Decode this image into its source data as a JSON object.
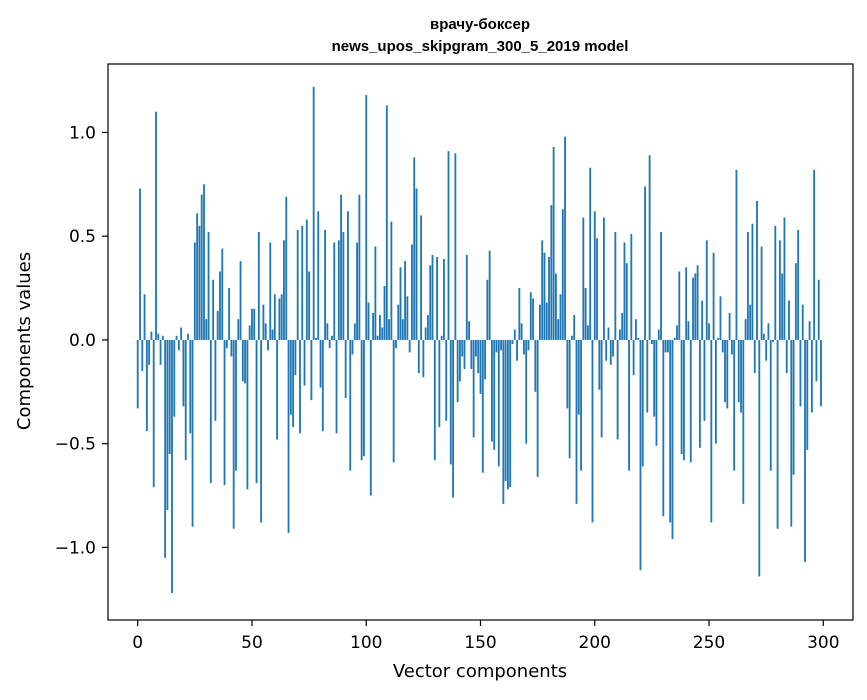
{
  "chart_data": {
    "type": "bar",
    "title": "врачу-боксер",
    "subtitle": "news_upos_skipgram_300_5_2019 model",
    "xlabel": "Vector components",
    "ylabel": "Components values",
    "xlim": [
      -13,
      313
    ],
    "ylim": [
      -1.35,
      1.33
    ],
    "xticks": [
      0,
      50,
      100,
      150,
      200,
      250,
      300
    ],
    "yticks": [
      -1.0,
      -0.5,
      0.0,
      0.5,
      1.0
    ],
    "ytick_labels": [
      "−1.0",
      "−0.5",
      "0.0",
      "0.5",
      "1.0"
    ],
    "grid": false,
    "bar_color": "#1f77b4",
    "n_components": 300,
    "values": [
      -0.33,
      0.73,
      -0.15,
      0.22,
      -0.44,
      -0.12,
      0.04,
      -0.71,
      1.1,
      0.03,
      -0.12,
      0.02,
      -1.05,
      -0.82,
      -0.55,
      -1.22,
      -0.37,
      0.02,
      -0.05,
      0.06,
      -0.32,
      -0.58,
      0.03,
      -0.45,
      -0.9,
      0.47,
      0.61,
      0.55,
      0.7,
      0.75,
      0.1,
      0.52,
      -0.69,
      0.29,
      -0.39,
      0.14,
      0.33,
      0.44,
      -0.7,
      -0.04,
      0.25,
      -0.08,
      -0.91,
      -0.63,
      0.1,
      0.38,
      -0.2,
      -0.21,
      -0.72,
      0.07,
      0.15,
      0.15,
      -0.69,
      0.52,
      -0.88,
      0.17,
      0.08,
      -0.05,
      0.47,
      0.05,
      0.22,
      -0.48,
      0.2,
      0.22,
      0.48,
      0.69,
      -0.93,
      -0.36,
      -0.42,
      -0.17,
      0.53,
      -0.45,
      0.55,
      -0.22,
      0.58,
      0.33,
      -0.29,
      1.22,
      0.01,
      0.62,
      -0.23,
      -0.44,
      0.53,
      0.08,
      -0.04,
      0.02,
      0.47,
      -0.45,
      0.48,
      0.7,
      0.52,
      -0.28,
      0.62,
      -0.63,
      -0.07,
      0.08,
      0.47,
      0.7,
      -0.58,
      -0.56,
      1.18,
      0.18,
      -0.75,
      0.13,
      0.45,
      0.02,
      0.12,
      0.06,
      0.26,
      1.13,
      0.1,
      0.57,
      -0.59,
      -0.04,
      0.17,
      0.35,
      0.1,
      0.38,
      0.21,
      -0.06,
      0.46,
      0.88,
      0.73,
      -0.16,
      0.6,
      -0.18,
      0.06,
      0.12,
      0.36,
      0.41,
      -0.58,
      0.4,
      -0.42,
      0.02,
      0.39,
      -0.39,
      0.91,
      -0.6,
      -0.76,
      0.9,
      -0.3,
      -0.2,
      -0.08,
      -0.14,
      0.41,
      0.09,
      -0.14,
      -0.47,
      -0.08,
      -0.16,
      -0.26,
      -0.64,
      -0.19,
      0.29,
      0.43,
      -0.49,
      -0.53,
      -0.06,
      -0.61,
      -0.05,
      -0.79,
      -0.68,
      -0.72,
      -0.71,
      -0.02,
      0.05,
      -0.1,
      0.25,
      0.08,
      -0.07,
      -0.5,
      -0.05,
      0.23,
      0.2,
      -0.25,
      -0.66,
      0.17,
      0.48,
      0.42,
      0.18,
      0.4,
      0.65,
      0.93,
      0.32,
      0.1,
      0.22,
      0.63,
      0.98,
      -0.33,
      -0.57,
      0.02,
      0.12,
      -0.79,
      -0.36,
      -0.63,
      0.59,
      0.25,
      0.07,
      0.83,
      -0.88,
      0.62,
      0.49,
      -0.24,
      -0.47,
      0.59,
      -0.1,
      0.06,
      -0.12,
      -0.08,
      0.52,
      -0.48,
      0.05,
      0.13,
      0.47,
      0.37,
      -0.63,
      0.51,
      -0.17,
      0.1,
      0.01,
      -1.11,
      -0.61,
      0.74,
      -0.35,
      0.89,
      -0.02,
      -0.37,
      -0.51,
      0.05,
      0.52,
      -0.85,
      -0.06,
      -0.06,
      -0.88,
      -0.96,
      0.01,
      0.07,
      0.33,
      -0.55,
      -0.58,
      0.35,
      0.09,
      -0.59,
      0.3,
      0.32,
      0.36,
      -0.52,
      0.19,
      -0.39,
      0.48,
      0.08,
      -0.88,
      0.42,
      -0.5,
      0.01,
      0.21,
      -0.06,
      -0.3,
      -0.33,
      0.13,
      -0.07,
      -0.63,
      0.82,
      -0.3,
      -0.35,
      -0.79,
      0.1,
      0.52,
      0.17,
      0.56,
      -0.16,
      0.67,
      -1.14,
      0.45,
      0.03,
      -0.1,
      0.08,
      -0.63,
      -0.01,
      0.55,
      -0.91,
      0.48,
      0.32,
      0.59,
      -0.16,
      0.19,
      -0.9,
      -0.65,
      0.37,
      0.53,
      -0.32,
      0.17,
      -1.07,
      -0.53,
      0.09,
      -0.35,
      0.82,
      -0.2,
      0.29,
      -0.32
    ]
  }
}
